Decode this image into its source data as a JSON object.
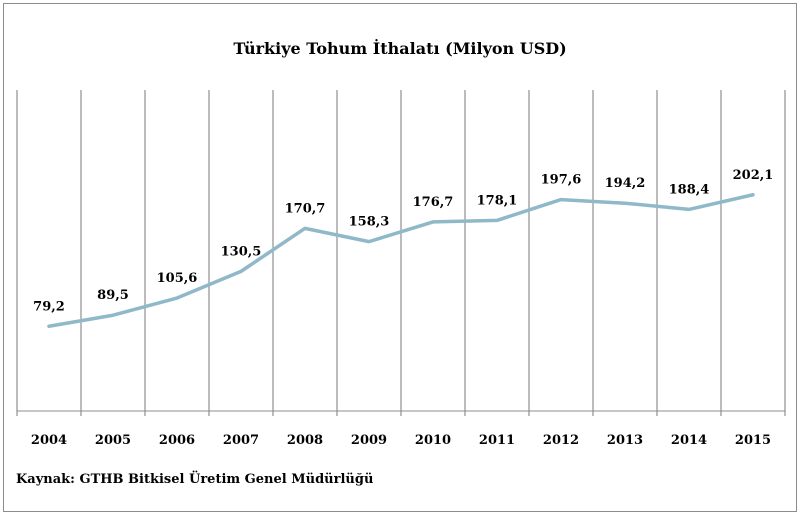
{
  "chart_data": {
    "type": "line",
    "title": "Türkiye Tohum İthalatı (Milyon USD)",
    "xlabel": "",
    "ylabel": "",
    "categories": [
      "2004",
      "2005",
      "2006",
      "2007",
      "2008",
      "2009",
      "2010",
      "2011",
      "2012",
      "2013",
      "2014",
      "2015"
    ],
    "series": [
      {
        "values": [
          79.2,
          89.5,
          105.6,
          130.5,
          170.7,
          158.3,
          176.7,
          178.1,
          197.6,
          194.2,
          188.4,
          202.1
        ],
        "labels": [
          "79,2",
          "89,5",
          "105,6",
          "130,5",
          "170,7",
          "158,3",
          "176,7",
          "178,1",
          "197,6",
          "194,2",
          "188,4",
          "202,1"
        ],
        "color": "#8fb8c8"
      }
    ],
    "ylim": [
      0,
      300
    ],
    "grid": "vertical",
    "legend": "none"
  },
  "source": "Kaynak: GTHB Bitkisel Üretim Genel Müdürlüğü"
}
